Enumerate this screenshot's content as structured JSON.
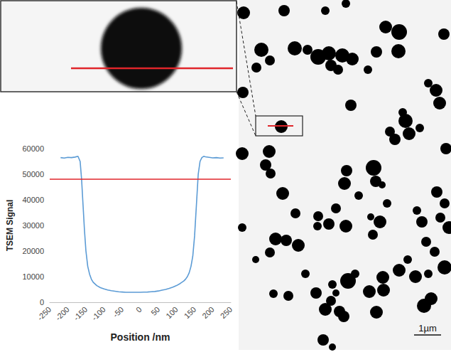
{
  "chart_data": {
    "type": "line",
    "x_label": "Position /nm",
    "y_label": "TSEM Signal",
    "x": [
      -220,
      -210,
      -200,
      -190,
      -180,
      -172,
      -166,
      -162,
      -158,
      -154,
      -150,
      -145,
      -140,
      -135,
      -130,
      -120,
      -110,
      -100,
      -90,
      -80,
      -70,
      -60,
      -50,
      -40,
      -30,
      -20,
      -10,
      0,
      10,
      20,
      30,
      40,
      50,
      60,
      70,
      80,
      90,
      100,
      110,
      120,
      125,
      130,
      135,
      140,
      145,
      150,
      155,
      160,
      165,
      170,
      175,
      180,
      190,
      200,
      210,
      220,
      230
    ],
    "values": [
      56500,
      56300,
      56600,
      56500,
      56700,
      57000,
      55000,
      48000,
      38000,
      28000,
      20000,
      14000,
      11000,
      9000,
      7800,
      6500,
      5700,
      5200,
      4800,
      4500,
      4300,
      4100,
      4000,
      3900,
      3900,
      3900,
      3900,
      3900,
      3950,
      4000,
      4100,
      4200,
      4400,
      4700,
      5000,
      5400,
      5900,
      6500,
      7300,
      8300,
      9000,
      10000,
      11500,
      14000,
      18000,
      26000,
      38000,
      50000,
      55000,
      56500,
      57000,
      56800,
      56600,
      56400,
      56500,
      56300,
      56400
    ],
    "color": "#5b9bd5",
    "threshold": {
      "y": 48000,
      "color": "#e0262b"
    },
    "xlim": [
      -250,
      250
    ],
    "xticks": [
      -250,
      -200,
      -150,
      -100,
      -50,
      0,
      50,
      100,
      150,
      200,
      250
    ],
    "ylim": [
      0,
      60000
    ],
    "yticks": [
      0,
      10000,
      20000,
      30000,
      40000,
      50000,
      60000
    ],
    "grid": false
  },
  "micrograph": {
    "scale_bar": "1µm"
  }
}
